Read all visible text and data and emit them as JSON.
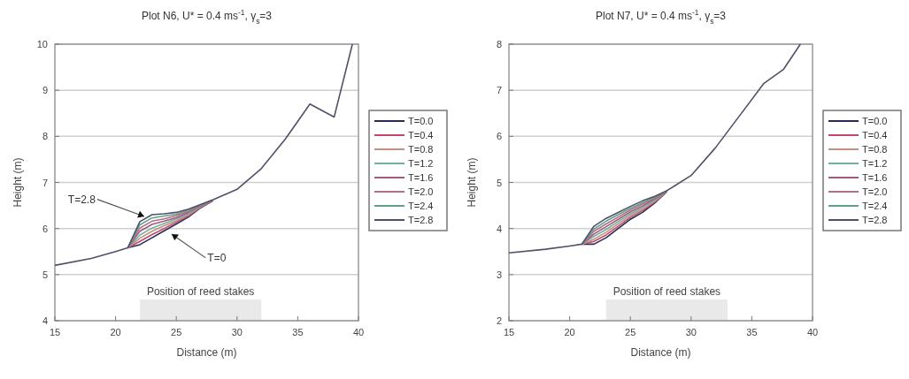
{
  "chart_data": [
    {
      "type": "line",
      "title": "Plot N6, U* = 0.4 ms$^{-1}$, γ$_{s}$=3",
      "xlabel": "Distance (m)",
      "ylabel": "Height (m)",
      "xlim": [
        15,
        40
      ],
      "ylim": [
        4,
        10
      ],
      "xticks": [
        15,
        20,
        25,
        30,
        35,
        40
      ],
      "yticks": [
        4,
        5,
        6,
        7,
        8,
        9,
        10
      ],
      "grid": "y",
      "legend": "right",
      "x": [
        15,
        18,
        20,
        21,
        22,
        23,
        24,
        25,
        26,
        27,
        28,
        30,
        32,
        34,
        36,
        38,
        39.5
      ],
      "series": [
        {
          "name": "T=0.0",
          "color": "#2a2a5a",
          "values": [
            null,
            null,
            null,
            5.58,
            5.65,
            5.8,
            5.95,
            6.1,
            6.25,
            6.45,
            6.6,
            null,
            null,
            null,
            null,
            null,
            null
          ]
        },
        {
          "name": "T=0.4",
          "color": "#c04868",
          "values": [
            null,
            null,
            null,
            5.58,
            5.72,
            5.87,
            6.0,
            6.14,
            6.27,
            6.46,
            6.6,
            null,
            null,
            null,
            null,
            null,
            null
          ]
        },
        {
          "name": "T=0.8",
          "color": "#c09080",
          "values": [
            null,
            null,
            null,
            5.58,
            5.79,
            5.94,
            6.06,
            6.17,
            6.3,
            6.47,
            6.61,
            null,
            null,
            null,
            null,
            null,
            null
          ]
        },
        {
          "name": "T=1.2",
          "color": "#70b0a0",
          "values": [
            null,
            null,
            null,
            5.58,
            5.86,
            6.01,
            6.11,
            6.21,
            6.32,
            6.48,
            6.61,
            null,
            null,
            null,
            null,
            null,
            null
          ]
        },
        {
          "name": "T=1.6",
          "color": "#a05880",
          "values": [
            null,
            null,
            null,
            5.58,
            5.94,
            6.09,
            6.16,
            6.24,
            6.35,
            6.49,
            6.61,
            null,
            null,
            null,
            null,
            null,
            null
          ]
        },
        {
          "name": "T=2.0",
          "color": "#b07080",
          "values": [
            null,
            null,
            null,
            5.58,
            6.01,
            6.16,
            6.21,
            6.28,
            6.37,
            6.5,
            6.61,
            null,
            null,
            null,
            null,
            null,
            null
          ]
        },
        {
          "name": "T=2.4",
          "color": "#60a090",
          "values": [
            null,
            null,
            null,
            5.58,
            6.08,
            6.23,
            6.27,
            6.31,
            6.4,
            6.51,
            6.62,
            null,
            null,
            null,
            null,
            null,
            null
          ]
        },
        {
          "name": "T=2.8",
          "color": "#505068",
          "values": [
            5.2,
            5.35,
            5.5,
            5.58,
            6.15,
            6.3,
            6.32,
            6.35,
            6.42,
            6.52,
            6.62,
            6.85,
            7.3,
            7.95,
            8.7,
            8.42,
            10
          ]
        }
      ],
      "bands": [
        {
          "axis": "x",
          "from": 22,
          "to": 32,
          "label": "Position of reed stakes",
          "color": "#e4e4e4"
        }
      ],
      "annotations": [
        {
          "text": "T=2.8",
          "x": 22.5,
          "y": 6.25
        },
        {
          "text": "T=0",
          "x": 24.5,
          "y": 5.9
        }
      ]
    },
    {
      "type": "line",
      "title": "Plot N7, U* = 0.4 ms$^{-1}$, γ$_{s}$=3",
      "xlabel": "Distance (m)",
      "ylabel": "Height (m)",
      "xlim": [
        15,
        40
      ],
      "ylim": [
        2,
        8
      ],
      "xticks": [
        15,
        20,
        25,
        30,
        35,
        40
      ],
      "yticks": [
        2,
        3,
        4,
        5,
        6,
        7,
        8
      ],
      "grid": "y",
      "legend": "right",
      "x": [
        15,
        18,
        20,
        21,
        22,
        23,
        24,
        25,
        26,
        27,
        28,
        30,
        32,
        34,
        36,
        37.6,
        39
      ],
      "series": [
        {
          "name": "T=0.0",
          "color": "#2a2a5a",
          "values": [
            null,
            null,
            null,
            3.66,
            3.66,
            3.8,
            4.0,
            4.2,
            4.35,
            4.55,
            4.8,
            null,
            null,
            null,
            null,
            null,
            null
          ]
        },
        {
          "name": "T=0.4",
          "color": "#c04868",
          "values": [
            null,
            null,
            null,
            3.66,
            3.72,
            3.86,
            4.05,
            4.24,
            4.39,
            4.57,
            4.8,
            null,
            null,
            null,
            null,
            null,
            null
          ]
        },
        {
          "name": "T=0.8",
          "color": "#c09080",
          "values": [
            null,
            null,
            null,
            3.66,
            3.77,
            3.92,
            4.1,
            4.28,
            4.42,
            4.59,
            4.81,
            null,
            null,
            null,
            null,
            null,
            null
          ]
        },
        {
          "name": "T=1.2",
          "color": "#70b0a0",
          "values": [
            null,
            null,
            null,
            3.66,
            3.83,
            3.98,
            4.15,
            4.32,
            4.46,
            4.61,
            4.81,
            null,
            null,
            null,
            null,
            null,
            null
          ]
        },
        {
          "name": "T=1.6",
          "color": "#a05880",
          "values": [
            null,
            null,
            null,
            3.66,
            3.88,
            4.04,
            4.2,
            4.36,
            4.49,
            4.64,
            4.81,
            null,
            null,
            null,
            null,
            null,
            null
          ]
        },
        {
          "name": "T=2.0",
          "color": "#b07080",
          "values": [
            null,
            null,
            null,
            3.66,
            3.94,
            4.1,
            4.25,
            4.4,
            4.53,
            4.66,
            4.81,
            null,
            null,
            null,
            null,
            null,
            null
          ]
        },
        {
          "name": "T=2.4",
          "color": "#60a090",
          "values": [
            null,
            null,
            null,
            3.66,
            3.99,
            4.16,
            4.3,
            4.44,
            4.56,
            4.68,
            4.82,
            null,
            null,
            null,
            null,
            null,
            null
          ]
        },
        {
          "name": "T=2.8",
          "color": "#505068",
          "values": [
            3.47,
            3.55,
            3.62,
            3.66,
            4.05,
            4.22,
            4.35,
            4.48,
            4.6,
            4.7,
            4.82,
            5.15,
            5.75,
            6.45,
            7.15,
            7.45,
            8
          ]
        }
      ],
      "bands": [
        {
          "axis": "x",
          "from": 23,
          "to": 33,
          "label": "Position of reed stakes",
          "color": "#e4e4e4"
        }
      ]
    }
  ]
}
